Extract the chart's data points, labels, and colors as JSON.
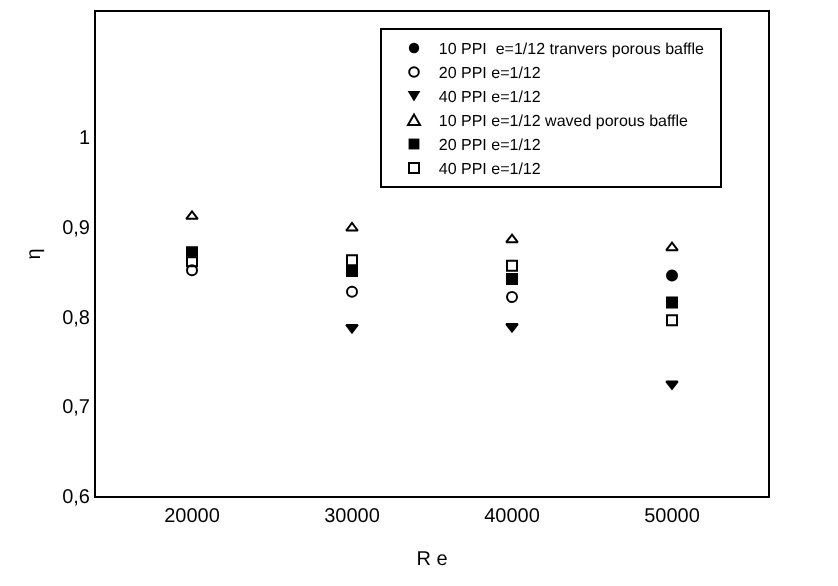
{
  "chart_data": {
    "type": "scatter",
    "xlabel": "R e",
    "ylabel": "η",
    "categories": [
      "20000",
      "30000",
      "40000",
      "50000"
    ],
    "ylim": [
      0.6,
      1.14
    ],
    "yticks": [
      {
        "value": 0.6,
        "label": "0,6"
      },
      {
        "value": 0.7,
        "label": "0,7"
      },
      {
        "value": 0.8,
        "label": "0,8"
      },
      {
        "value": 0.9,
        "label": "0,9"
      },
      {
        "value": 1,
        "label": "1"
      }
    ],
    "grid": false,
    "legend": "top right",
    "series": [
      {
        "name": "10 PPI  e=1/12 tranvers porous baffle",
        "color": "#000000",
        "marker": "circle",
        "values": [
          null,
          null,
          null,
          0.846
        ]
      },
      {
        "name": "20 PPI e=1/12",
        "color": "#000000",
        "marker": "circle-open",
        "values": [
          0.852,
          0.828,
          0.822,
          null
        ]
      },
      {
        "name": "40 PPI e=1/12",
        "color": "#000000",
        "marker": "triangle-down",
        "values": [
          null,
          0.788,
          0.789,
          0.725
        ]
      },
      {
        "name": "10 PPI e=1/12 waved porous baffle",
        "color": "#000000",
        "marker": "triangle-open",
        "values": [
          0.912,
          0.899,
          0.886,
          0.877
        ]
      },
      {
        "name": "20 PPI e=1/12",
        "color": "#000000",
        "marker": "square",
        "values": [
          0.872,
          0.851,
          0.842,
          0.816
        ]
      },
      {
        "name": "40 PPI e=1/12",
        "color": "#000000",
        "marker": "square-open",
        "values": [
          0.862,
          0.863,
          0.857,
          0.796
        ]
      }
    ]
  }
}
